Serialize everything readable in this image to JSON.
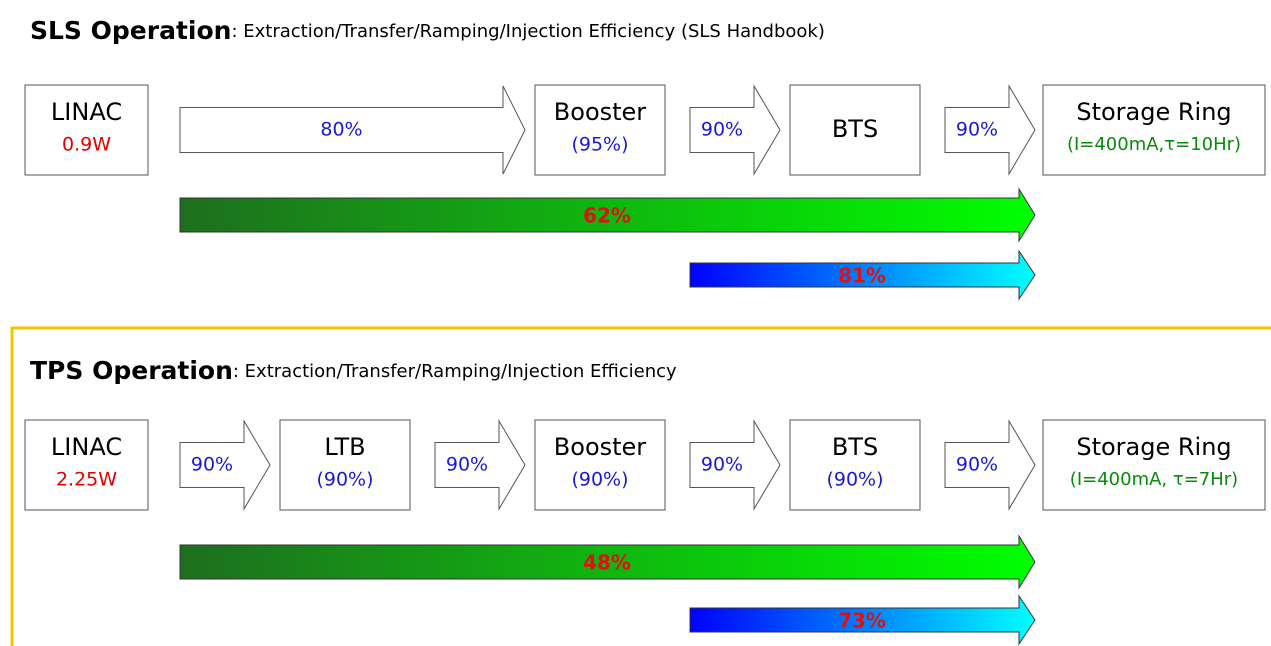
{
  "sls": {
    "title_bold": "SLS Operation",
    "title_rest": ": Extraction/Transfer/Ramping/Injection Efficiency (SLS Handbook)",
    "nodes": [
      {
        "label": "LINAC",
        "sub": "0.9W"
      },
      {
        "label": "Booster",
        "sub": "(95%)"
      },
      {
        "label": "BTS"
      },
      {
        "label": "Storage Ring",
        "sub": "(I=400mA,τ=10Hr)"
      }
    ],
    "transfers": [
      "80%",
      "90%",
      "90%"
    ],
    "overall": [
      "62%",
      "81%"
    ]
  },
  "tps": {
    "title_bold": "TPS Operation",
    "title_rest": ": Extraction/Transfer/Ramping/Injection Efficiency",
    "nodes": [
      {
        "label": "LINAC",
        "sub": "2.25W"
      },
      {
        "label": "LTB",
        "sub": "(90%)"
      },
      {
        "label": "Booster",
        "sub": "(90%)"
      },
      {
        "label": "BTS",
        "sub": "(90%)"
      },
      {
        "label": "Storage Ring",
        "sub": "(I=400mA, τ=7Hr)"
      }
    ],
    "transfers": [
      "90%",
      "90%",
      "90%",
      "90%"
    ],
    "overall": [
      "48%",
      "73%"
    ]
  }
}
